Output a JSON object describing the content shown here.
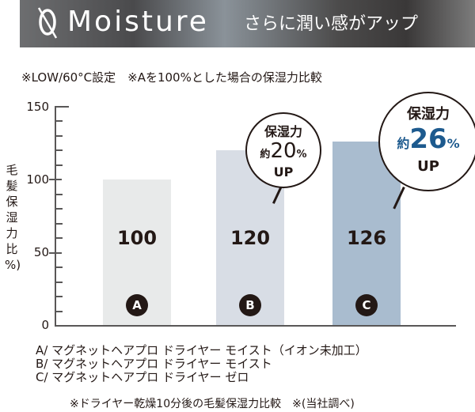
{
  "header": {
    "logo_icon": "zero-slash-icon",
    "title": "Moisture",
    "subtitle": "さらに潤い感がアップ"
  },
  "note": "※LOW/60°C設定　※Aを100%とした場合の保湿力比較",
  "chart_data": {
    "type": "bar",
    "title": "Moisture さらに潤い感がアップ",
    "subtitle": "※LOW/60°C設定　※Aを100%とした場合の保湿力比較",
    "categories": [
      "A",
      "B",
      "C"
    ],
    "values": [
      100,
      120,
      126
    ],
    "value_labels": [
      "100",
      "120",
      "126"
    ],
    "bar_colors": [
      "#e8eaea",
      "#d8dde5",
      "#a9bccf"
    ],
    "xlabel": "",
    "ylabel": "毛髪保湿力比%）",
    "ylim": [
      0,
      150
    ],
    "yticks": [
      0,
      50,
      100,
      150
    ],
    "minor_tick_step": 10,
    "grid": false,
    "annotations": [
      {
        "target": "B",
        "line1": "保湿力",
        "prefix": "約",
        "value": "20",
        "unit": "%",
        "line3": "UP",
        "value_color": "#231815"
      },
      {
        "target": "C",
        "line1": "保湿力",
        "prefix": "約",
        "value": "26",
        "unit": "%",
        "line3": "UP",
        "value_color": "#1d5a8e"
      }
    ],
    "legend": [
      "A/ マグネットヘアプロ ドライヤー モイスト（イオン未加工）",
      "B/ マグネットヘアプロ ドライヤー モイスト",
      "C/ マグネットヘアプロ ドライヤー ゼロ"
    ],
    "footnote": "※ドライヤー乾燥10分後の毛髪保湿力比較　※(当社調べ)"
  },
  "axis": {
    "ylabel_chars": [
      "毛",
      "髪",
      "保",
      "湿",
      "力",
      "比",
      "%)"
    ],
    "tick_labels": [
      "150",
      "100",
      "50",
      "0"
    ]
  }
}
